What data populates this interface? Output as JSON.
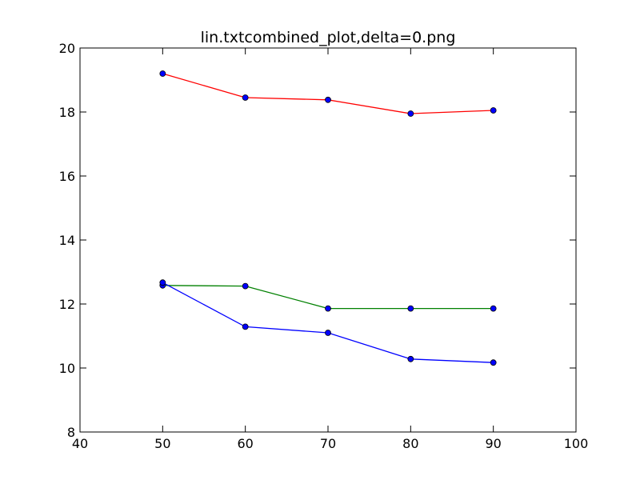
{
  "chart_data": {
    "type": "line",
    "title": "lin.txtcombined_plot,delta=0.png",
    "xlabel": "",
    "ylabel": "",
    "xlim": [
      40,
      100
    ],
    "ylim": [
      8,
      20
    ],
    "xticks": [
      40,
      50,
      60,
      70,
      80,
      90,
      100
    ],
    "yticks": [
      8,
      10,
      12,
      14,
      16,
      18,
      20
    ],
    "grid": false,
    "legend": "none",
    "x": [
      50,
      60,
      70,
      80,
      90
    ],
    "series": [
      {
        "color": "#ff0000",
        "marker_color": "#0000ff",
        "values": [
          19.2,
          18.45,
          18.38,
          17.95,
          18.05
        ]
      },
      {
        "color": "#008000",
        "marker_color": "#0000ff",
        "values": [
          12.58,
          12.56,
          11.86,
          11.86,
          11.86
        ]
      },
      {
        "color": "#0000ff",
        "marker_color": "#0000ff",
        "values": [
          12.67,
          11.29,
          11.1,
          10.28,
          10.17
        ]
      }
    ]
  }
}
